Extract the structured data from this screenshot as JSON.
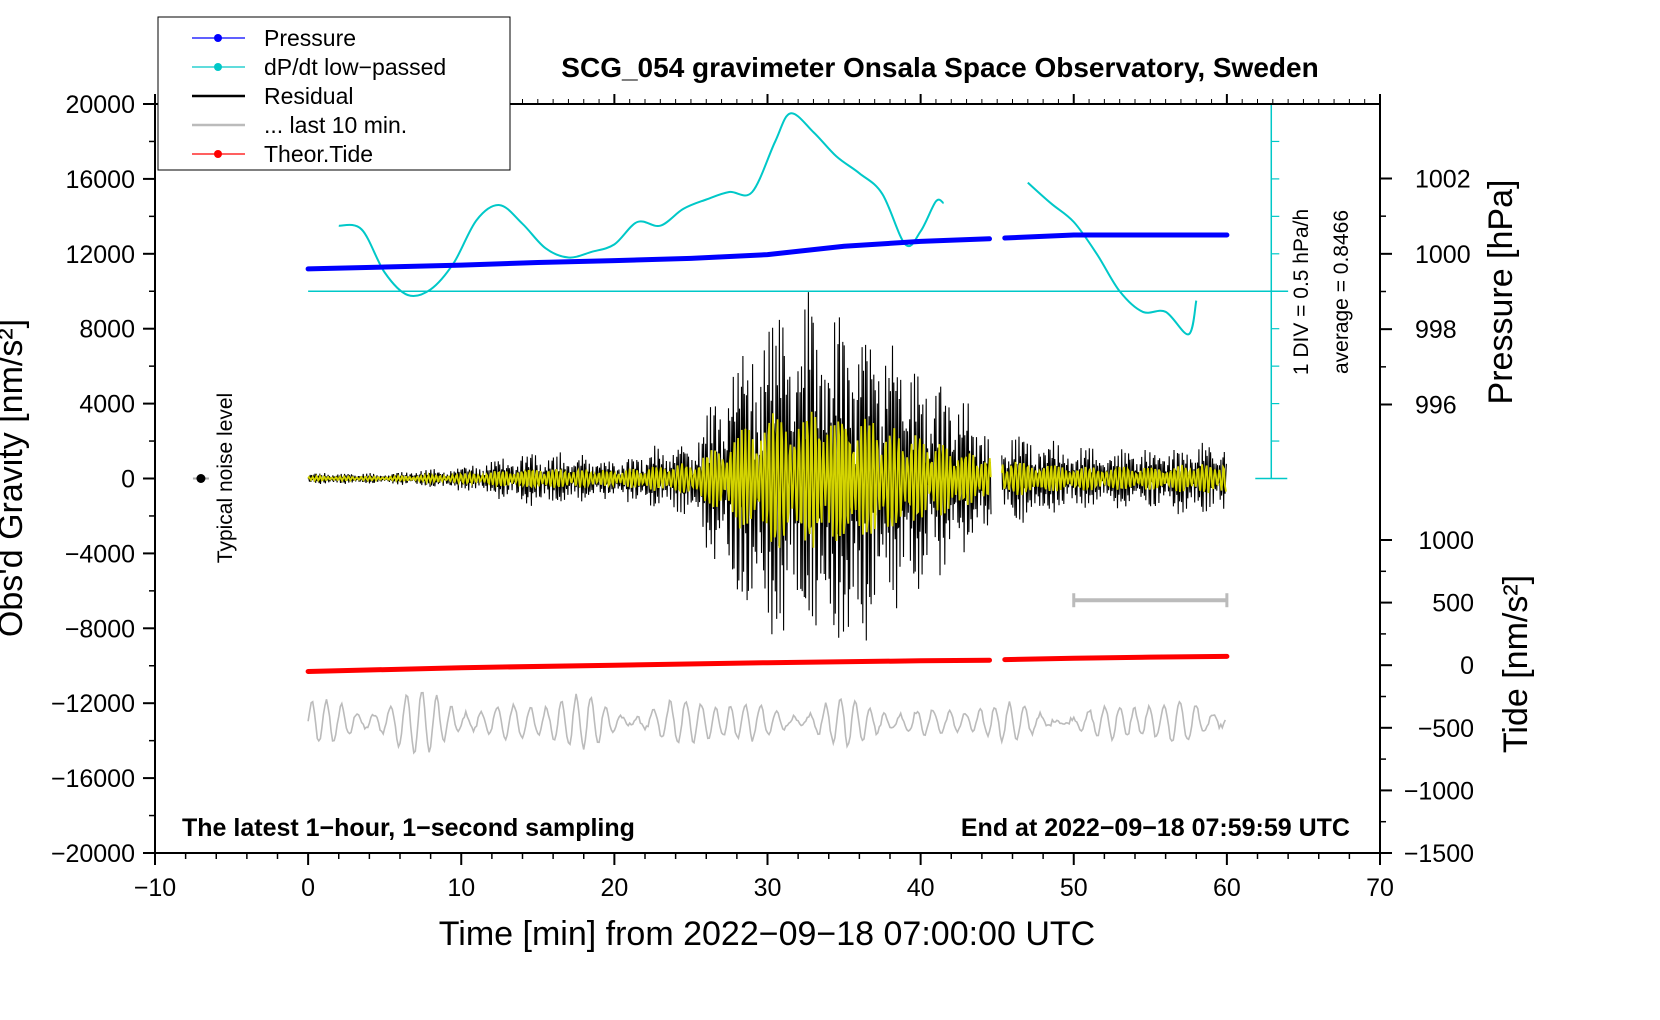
{
  "chart_data": {
    "type": "line",
    "title": "SCG_054 gravimeter Onsala Space Observatory, Sweden",
    "xlabel": "Time [min] from 2022−09−18 07:00:00 UTC",
    "ylabel_left": "Obs'd Gravity [nm/s²]",
    "ylabel_pressure": "Pressure [hPa]",
    "ylabel_tide": "Tide [nm/s²]",
    "xlim": [
      -10,
      70
    ],
    "ylim": [
      -20000,
      20000
    ],
    "pressure_lim": [
      996,
      1002
    ],
    "tide_lim": [
      -1500,
      1000
    ],
    "x_ticks": [
      "−10",
      "0",
      "10",
      "20",
      "30",
      "40",
      "50",
      "60",
      "70"
    ],
    "x_tick_values": [
      -10,
      0,
      10,
      20,
      30,
      40,
      50,
      60,
      70
    ],
    "y_ticks": [
      "20000",
      "16000",
      "12000",
      "8000",
      "4000",
      "0",
      "−4000",
      "−8000",
      "−12000",
      "−16000",
      "−20000"
    ],
    "y_tick_values": [
      20000,
      16000,
      12000,
      8000,
      4000,
      0,
      -4000,
      -8000,
      -12000,
      -16000,
      -20000
    ],
    "pressure_ticks": [
      "1002",
      "1000",
      "998",
      "996"
    ],
    "pressure_tick_values": [
      1002,
      1000,
      998,
      996
    ],
    "tide_ticks": [
      "1000",
      "500",
      "0",
      "−500",
      "−1000",
      "−1500"
    ],
    "tide_tick_values": [
      1000,
      500,
      0,
      -500,
      -1000,
      -1500
    ],
    "legend": [
      {
        "label": "Pressure",
        "color": "#0000ff",
        "style": "dot-line"
      },
      {
        "label": "dP/dt low−passed",
        "color": "#00c8c8",
        "style": "dot-line"
      },
      {
        "label": "Residual",
        "color": "#000000",
        "style": "line"
      },
      {
        "label": "... last 10 min.",
        "color": "#bbbbbb",
        "style": "line"
      },
      {
        "label": "Theor.Tide",
        "color": "#ff0000",
        "style": "dot-line"
      }
    ],
    "annotations": {
      "noise_label": "Typical noise level",
      "div_label": "1 DIV = 0.5 hPa/h",
      "average_label": "average = 0.8466",
      "bottom_left": "The latest 1−hour, 1−second sampling",
      "bottom_right": "End at 2022−09−18 07:59:59 UTC"
    },
    "series": [
      {
        "name": "Pressure",
        "unit": "hPa",
        "color": "#0000ff",
        "x": [
          0,
          5,
          10,
          15,
          20,
          25,
          30,
          35,
          40,
          44.5,
          45.5,
          50,
          55,
          60
        ],
        "values": [
          999.6,
          999.65,
          999.7,
          999.77,
          999.82,
          999.88,
          999.98,
          1000.2,
          1000.33,
          1000.4,
          1000.42,
          1000.5,
          1000.5,
          1000.5
        ]
      },
      {
        "name": "dP/dt low-passed",
        "unit": "nm/s² axis",
        "color": "#00c8c8",
        "x": [
          2,
          3.5,
          5,
          6.5,
          8,
          9.5,
          11,
          12.5,
          14,
          15.5,
          17,
          18.5,
          20,
          21.5,
          23,
          24.5,
          26,
          27.5,
          29,
          30.5,
          31.5,
          33,
          34.5,
          36,
          37.5,
          39,
          40,
          41,
          41.5,
          47,
          48.5,
          50,
          51.5,
          53,
          54.5,
          56,
          57.5,
          58
        ],
        "values": [
          13500,
          13300,
          11000,
          9800,
          10100,
          11500,
          13800,
          14600,
          13600,
          12300,
          11800,
          12100,
          12500,
          13700,
          13500,
          14400,
          14900,
          15300,
          15300,
          18000,
          19500,
          18500,
          17200,
          16300,
          15200,
          12500,
          13200,
          14800,
          14700,
          15800,
          14700,
          13700,
          12000,
          10000,
          8900,
          8900,
          7700,
          9500
        ]
      },
      {
        "name": "Residual",
        "unit": "nm/s²",
        "color": "#000000",
        "envelope_x": [
          0,
          5,
          10,
          15,
          20,
          25,
          30,
          35,
          40,
          44,
          45,
          50,
          55,
          60
        ],
        "envelope_amp": [
          300,
          250,
          600,
          1400,
          1000,
          2000,
          8500,
          9000,
          5500,
          3000,
          2500,
          1500,
          1500,
          2000
        ]
      },
      {
        "name": "... last 10 min.",
        "unit": "nm/s²",
        "color": "#bbbbbb",
        "baseline": -13000,
        "envelope_x": [
          0,
          10,
          20,
          30,
          40,
          50,
          60
        ],
        "envelope_amp": [
          1800,
          1700,
          1500,
          1400,
          1200,
          900,
          1800
        ]
      },
      {
        "name": "Theor.Tide",
        "unit": "nm/s²",
        "color": "#ff0000",
        "x": [
          0,
          10,
          20,
          30,
          40,
          44.5,
          45.5,
          50,
          55,
          60
        ],
        "values": [
          -50,
          -20,
          0,
          20,
          35,
          40,
          45,
          55,
          65,
          70
        ]
      }
    ],
    "noise_level": {
      "x": -7,
      "value": 0
    },
    "scale_bar_range": [
      50,
      60
    ],
    "scale_bar_value": -6500,
    "dpdt_zero_level": 10000,
    "div_scale_range": [
      0,
      20000
    ]
  }
}
